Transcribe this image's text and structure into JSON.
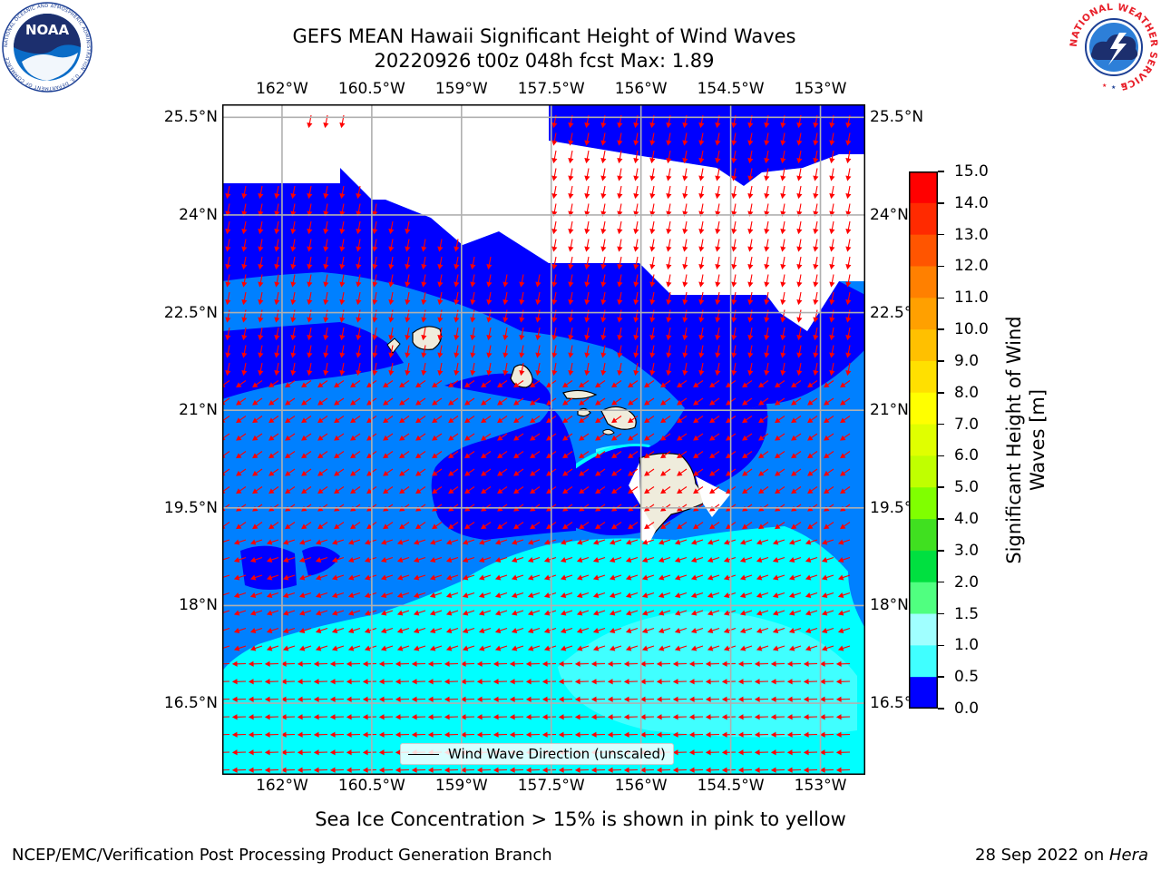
{
  "title": {
    "line1": "GEFS MEAN Hawaii Significant Height of Wind Waves",
    "line2": "20220926 t00z 048h fcst   Max: 1.89"
  },
  "axes": {
    "lon_ticks": [
      "162°W",
      "160.5°W",
      "159°W",
      "157.5°W",
      "156°W",
      "154.5°W",
      "153°W"
    ],
    "lon_values": [
      -162,
      -160.5,
      -159,
      -157.5,
      -156,
      -154.5,
      -153
    ],
    "lat_ticks": [
      "25.5°N",
      "24°N",
      "22.5°N",
      "21°N",
      "19.5°N",
      "18°N",
      "16.5°N"
    ],
    "lat_values": [
      25.5,
      24,
      22.5,
      21,
      19.5,
      18,
      16.5
    ],
    "lon_range": [
      -163,
      -152.25
    ],
    "lat_range": [
      15.4,
      25.7
    ],
    "grid": true
  },
  "map": {
    "field": "Significant Height of Wind Waves",
    "units": "m",
    "max_value": 1.89,
    "regions": [
      {
        "name": "no-data-north",
        "level": "none"
      },
      {
        "name": "band-0-0.5",
        "level": "0.0-0.5",
        "color": "#0000ff"
      },
      {
        "name": "band-0.5-1.0",
        "level": "0.5-1.0",
        "color": "#0080ff"
      },
      {
        "name": "band-1.0-1.5",
        "level": "1.0-1.5",
        "color": "#00ffff"
      },
      {
        "name": "band-1.5-2.0",
        "level": "1.5-2.0",
        "color": "#40ffff"
      }
    ],
    "islands": [
      "Niihau",
      "Kauai",
      "Oahu",
      "Molokai",
      "Lanai",
      "Maui",
      "Kahoolawe",
      "Hawaii"
    ],
    "land_color": "#efecdc",
    "arrow_color": "#ff0000"
  },
  "legend": {
    "label": "Wind Wave Direction (unscaled)",
    "placement": "bottom-center"
  },
  "colorbar": {
    "label_line1": "Significant Height of Wind",
    "label_line2": "Waves [m]",
    "ticks": [
      "15.0",
      "14.0",
      "13.0",
      "12.0",
      "11.0",
      "10.0",
      "9.0",
      "8.0",
      "7.0",
      "6.0",
      "5.0",
      "4.0",
      "3.0",
      "2.0",
      "1.5",
      "1.0",
      "0.5",
      "0.0"
    ],
    "colors": [
      "#ff0000",
      "#ff2a00",
      "#ff5500",
      "#ff8000",
      "#ffa000",
      "#ffc000",
      "#ffe000",
      "#ffff00",
      "#e0ff00",
      "#c0ff00",
      "#80ff00",
      "#40e020",
      "#00e040",
      "#50ff80",
      "#a0ffff",
      "#40ffff",
      "#00ffff",
      "#0080ff",
      "#0000ff"
    ]
  },
  "footer": {
    "sea_ice_note": "Sea Ice Concentration > 15% is shown in pink to yellow",
    "credit": "NCEP/EMC/Verification Post Processing Product Generation Branch",
    "date": "28 Sep 2022 on ",
    "machine": "Hera"
  },
  "logos": {
    "left": "NOAA",
    "left_ring": "NATIONAL OCEANIC AND ATMOSPHERIC ADMINISTRATION · U.S. DEPARTMENT OF COMMERCE",
    "right_ring": "NATIONAL WEATHER SERVICE"
  }
}
